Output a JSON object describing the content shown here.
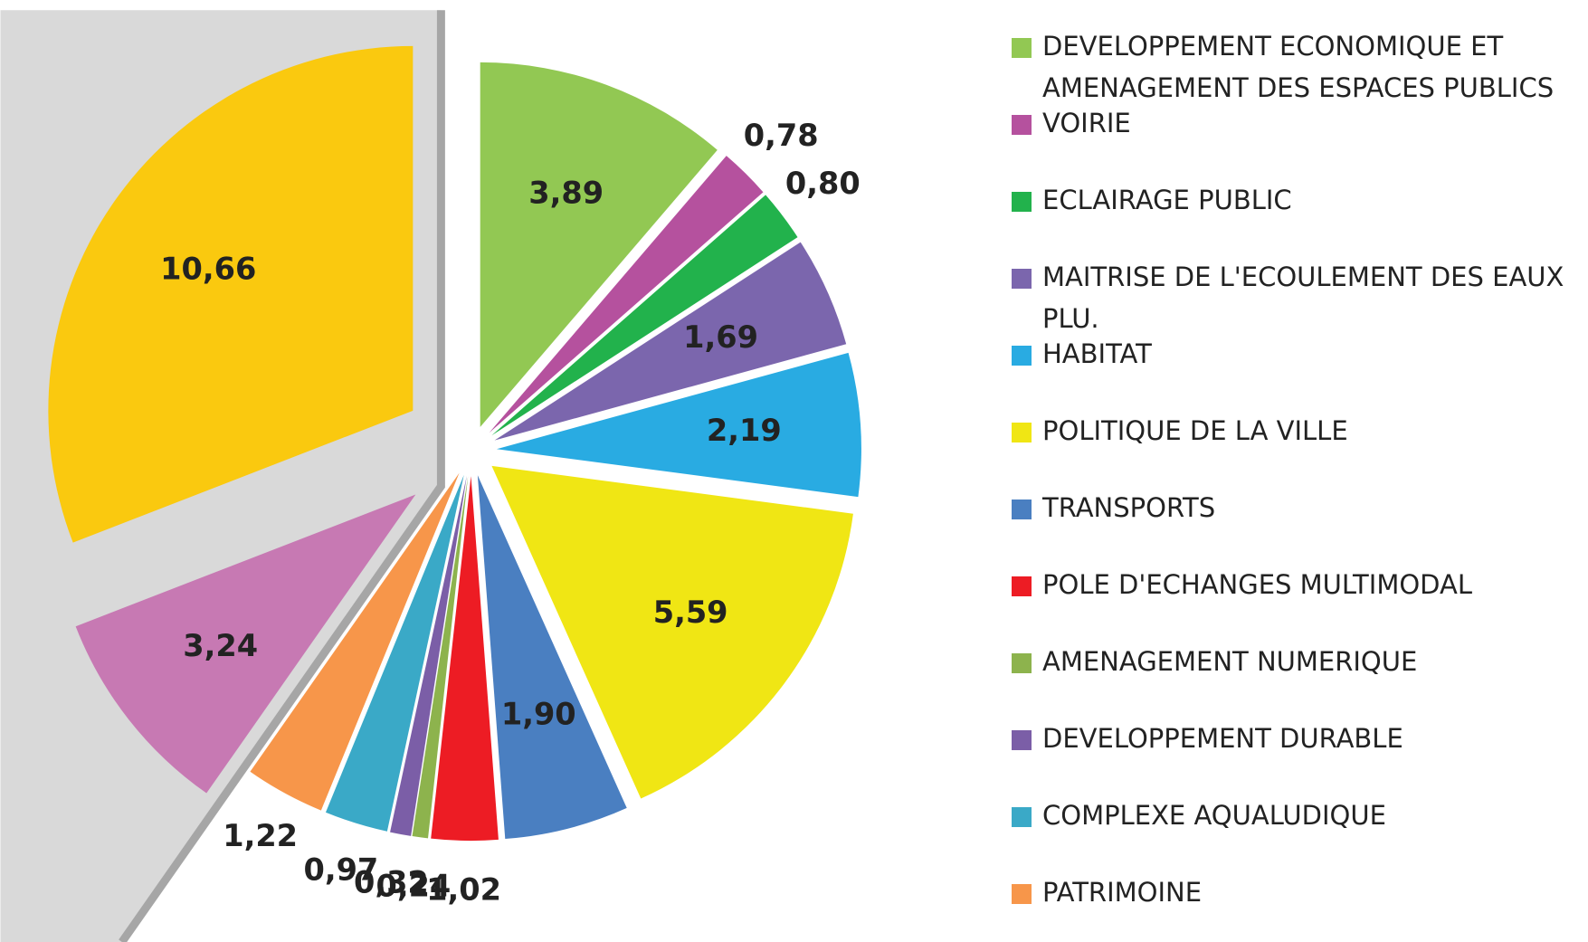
{
  "chart_data": {
    "type": "pie",
    "categories": [
      "DEVELOPPEMENT ECONOMIQUE ET AMENAGEMENT DES ESPACES PUBLICS",
      "VOIRIE",
      "ECLAIRAGE PUBLIC",
      "MAITRISE DE L'ECOULEMENT DES EAUX PLU.",
      "HABITAT",
      "POLITIQUE DE LA VILLE",
      "TRANSPORTS",
      "POLE D'ECHANGES MULTIMODAL",
      "AMENAGEMENT NUMERIQUE",
      "DEVELOPPEMENT DURABLE",
      "COMPLEXE AQUALUDIQUE",
      "PATRIMOINE",
      null,
      null
    ],
    "values": [
      3.89,
      0.78,
      0.8,
      1.69,
      2.19,
      5.59,
      1.9,
      1.02,
      0.24,
      0.32,
      0.97,
      1.22,
      3.24,
      10.66
    ],
    "value_labels": [
      "3,89",
      "0,78",
      "0,80",
      "1,69",
      "2,19",
      "5,59",
      "1,90",
      "1,02",
      "0,24",
      "0,32",
      "0,97",
      "1,22",
      "3,24",
      "10,66"
    ],
    "colors": [
      "#92c853",
      "#b5519e",
      "#22b24c",
      "#7b66ad",
      "#29abe2",
      "#f0e614",
      "#4a7fc1",
      "#ed1c24",
      "#8db34d",
      "#7b5ea7",
      "#3aa9c7",
      "#f7964a",
      "#c779b3",
      "#fac90f"
    ]
  }
}
